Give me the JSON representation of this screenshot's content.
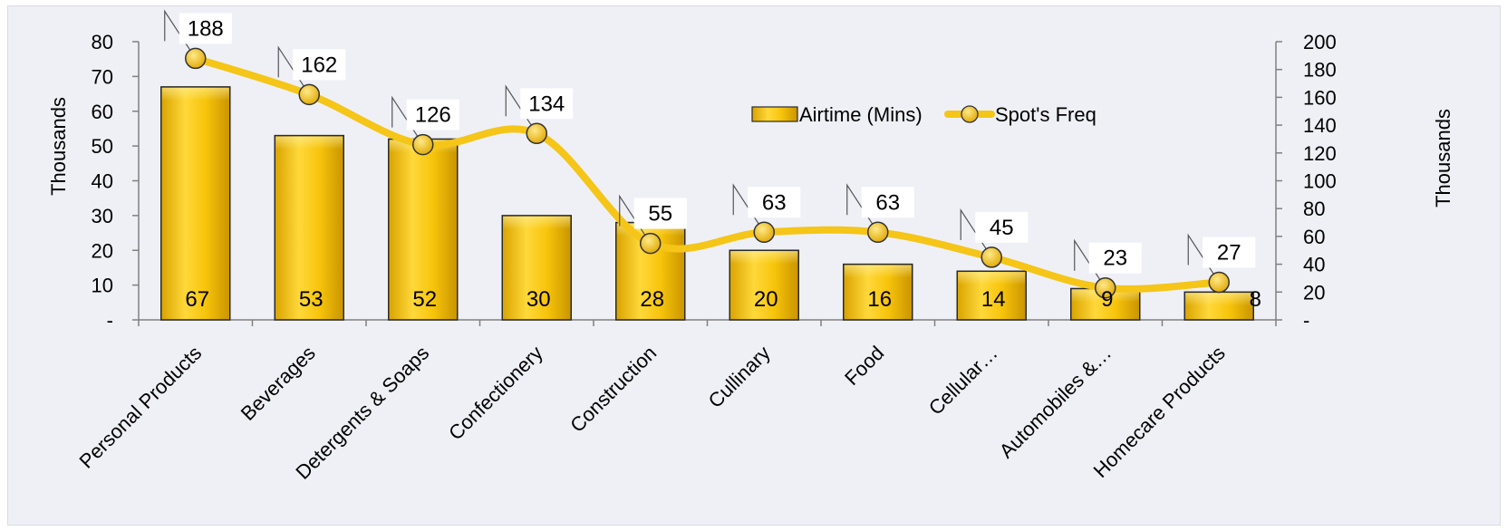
{
  "chart_data": {
    "type": "bar",
    "categories": [
      "Personal Products",
      "Beverages",
      "Detergents & Soaps",
      "Confectionery",
      "Construction",
      "Cullinary",
      "Food",
      "Cellular…",
      "Automobiles &…",
      "Homecare Products"
    ],
    "series": [
      {
        "name": "Airtime (Mins)",
        "type": "bar",
        "axis": "left",
        "values": [
          67,
          53,
          52,
          30,
          28,
          20,
          16,
          14,
          9,
          8
        ],
        "labels": [
          "67",
          "53",
          "52",
          "30",
          "28",
          "20",
          "16",
          "14",
          "9",
          "8"
        ],
        "color": "#f5c20b"
      },
      {
        "name": "Spot's Freq",
        "type": "line",
        "axis": "right",
        "values": [
          188,
          162,
          126,
          134,
          55,
          63,
          63,
          45,
          23,
          27
        ],
        "labels": [
          "188",
          "162",
          "126",
          "134",
          "55",
          "63",
          "63",
          "45",
          "23",
          "27"
        ],
        "color": "#f5c518"
      }
    ],
    "y_left": {
      "label": "Thousands",
      "range": [
        0,
        80
      ],
      "ticks": [
        0,
        10,
        20,
        30,
        40,
        50,
        60,
        70,
        80
      ],
      "tick_labels": [
        "-",
        "10",
        "20",
        "30",
        "40",
        "50",
        "60",
        "70",
        "80"
      ]
    },
    "y_right": {
      "label": "Thousands",
      "range": [
        0,
        200
      ],
      "ticks": [
        0,
        20,
        40,
        60,
        80,
        100,
        120,
        140,
        160,
        180,
        200
      ],
      "tick_labels": [
        "-",
        "20",
        "40",
        "60",
        "80",
        "100",
        "120",
        "140",
        "160",
        "180",
        "200"
      ]
    },
    "legend": {
      "position": "top-right",
      "entries": [
        "Airtime (Mins)",
        "Spot's Freq"
      ]
    },
    "grid": false
  }
}
